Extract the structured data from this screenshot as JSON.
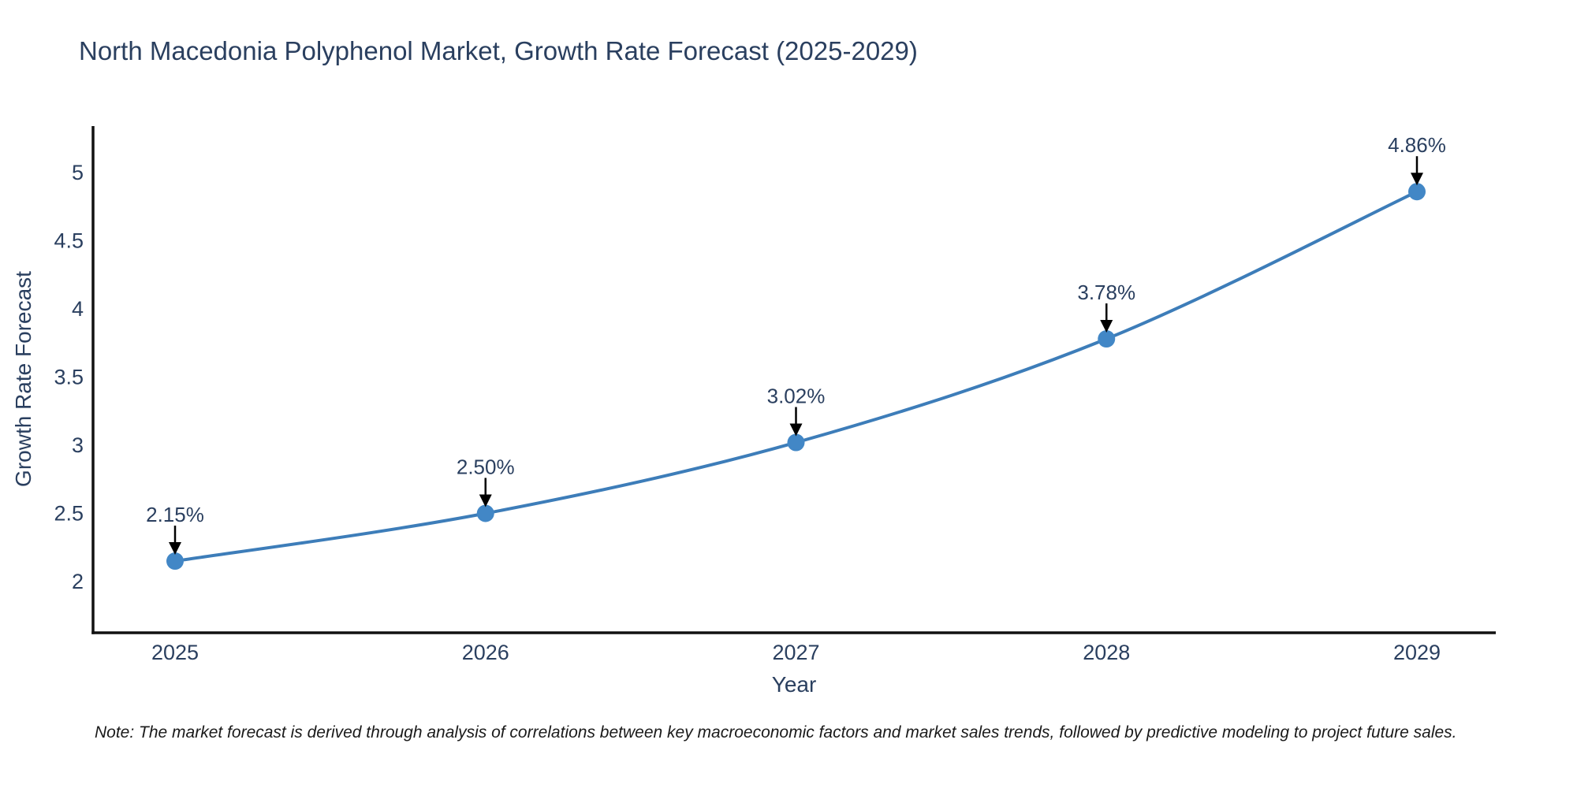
{
  "page": {
    "background": "#ffffff"
  },
  "chart_data": {
    "type": "line",
    "title": "North Macedonia Polyphenol Market, Growth Rate Forecast (2025-2029)",
    "xlabel": "Year",
    "ylabel": "Growth Rate Forecast",
    "x": [
      "2025",
      "2026",
      "2027",
      "2028",
      "2029"
    ],
    "values": [
      2.15,
      2.5,
      3.02,
      3.78,
      4.86
    ],
    "point_labels": [
      "2.15%",
      "2.50%",
      "3.02%",
      "3.78%",
      "4.86%"
    ],
    "ytick_labels": [
      "2",
      "2.5",
      "3",
      "3.5",
      "4",
      "4.5",
      "5"
    ],
    "ytick_values": [
      2,
      2.5,
      3,
      3.5,
      4,
      4.5,
      5
    ],
    "ylim": [
      1.62,
      5.34
    ],
    "grid": false,
    "legend": "none",
    "line_shape": "spline",
    "annotation_style": "label-above-with-down-arrow",
    "colors": {
      "line": "#3d7db9",
      "marker": "#4287c6",
      "axis": "#111111",
      "arrow": "#000000",
      "text": "#2a3f5f",
      "note": "#1a1a1a"
    },
    "note": "Note: The market forecast is derived through analysis of correlations between key macroeconomic factors and market sales trends, followed by predictive modeling to project future sales."
  }
}
